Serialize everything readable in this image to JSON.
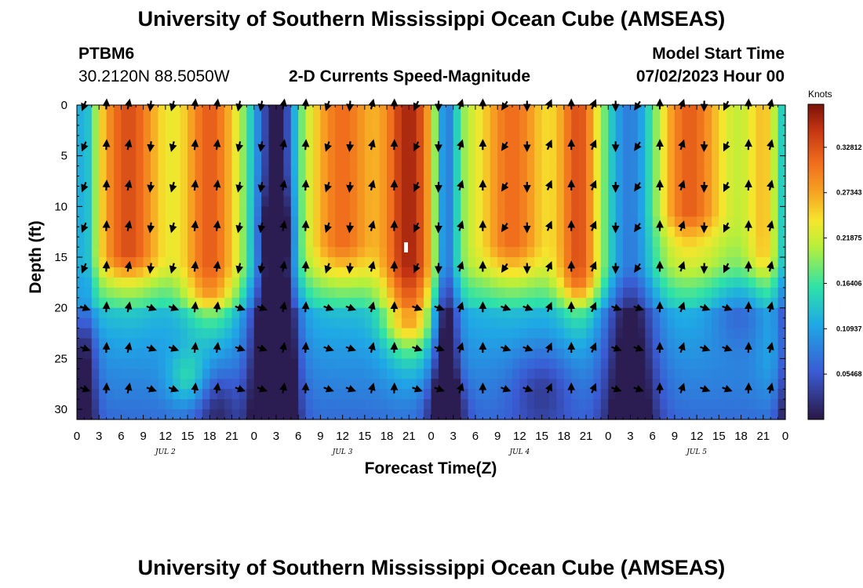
{
  "title_top": "University of Southern Mississippi Ocean Cube (AMSEAS)",
  "title_bottom": "University of Southern Mississippi Ocean Cube (AMSEAS)",
  "station": {
    "id": "PTBM6",
    "coords": "30.2120N  88.5050W"
  },
  "plot_title": "2-D Currents Speed-Magnitude",
  "model": {
    "label": "Model Start Time",
    "value": "07/02/2023 Hour 00"
  },
  "colors": {
    "min": "#2a1745",
    "low": "#3a5bd3",
    "mid": "#f5e62d",
    "high": "#ef6a1c",
    "max": "#7a1208"
  },
  "chart_data": {
    "type": "heatmap",
    "title": "2-D Currents Speed-Magnitude",
    "xlabel": "Forecast Time(Z)",
    "ylabel": "Depth (ft)",
    "x_ticks": [
      "0",
      "3",
      "6",
      "9",
      "12",
      "15",
      "18",
      "21",
      "0",
      "3",
      "6",
      "9",
      "12",
      "15",
      "18",
      "21",
      "0",
      "3",
      "6",
      "9",
      "12",
      "15",
      "18",
      "21",
      "0",
      "3",
      "6",
      "9",
      "12",
      "15",
      "18",
      "21",
      "0"
    ],
    "x_hours": [
      0,
      96
    ],
    "day_labels": [
      {
        "label": "JUL 2",
        "hour": 12
      },
      {
        "label": "JUL 3",
        "hour": 36
      },
      {
        "label": "JUL 4",
        "hour": 60
      },
      {
        "label": "JUL 5",
        "hour": 84
      }
    ],
    "y_ticks": [
      "0",
      "5",
      "10",
      "15",
      "20",
      "25",
      "30"
    ],
    "ylim": [
      0,
      31
    ],
    "colorbar": {
      "unit": "Knots",
      "ticks": [
        "0.32812",
        "0.27343",
        "0.21875",
        "0.16406",
        "0.10937",
        "0.05468"
      ],
      "tick_values": [
        0.32812,
        0.27343,
        0.21875,
        0.16406,
        0.10937,
        0.05468
      ],
      "range": [
        0,
        0.38
      ]
    },
    "arrow_depths": [
      0,
      4,
      8,
      12,
      16,
      20,
      24,
      28
    ],
    "arrow_hours": [
      1,
      4,
      7,
      10,
      13,
      16,
      19,
      22,
      25,
      28,
      31,
      34,
      37,
      40,
      43,
      46,
      49,
      52,
      55,
      58,
      61,
      64,
      67,
      70,
      73,
      76,
      79,
      82,
      85,
      88,
      91,
      94
    ]
  }
}
